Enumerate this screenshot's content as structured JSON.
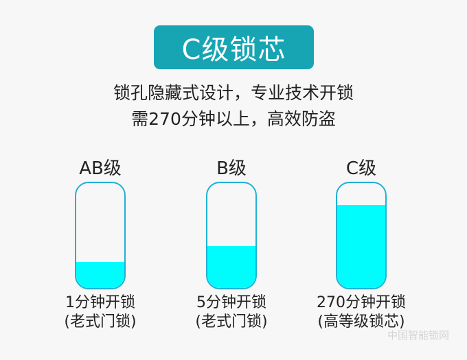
{
  "banner": {
    "title": "C级锁芯",
    "color": "#17a5b4"
  },
  "subtitle": {
    "line1": "锁孔隐藏式设计，专业技术开锁",
    "line2": "需270分钟以上，高效防盗"
  },
  "fill_color": "#00fdfd",
  "levels": [
    {
      "grade": "AB级",
      "fill_fraction": 0.25,
      "caption1": "1分钟开锁",
      "caption2": "(老式门锁)"
    },
    {
      "grade": "B级",
      "fill_fraction": 0.4,
      "caption1": "5分钟开锁",
      "caption2": "(老式门锁)"
    },
    {
      "grade": "C级",
      "fill_fraction": 0.79,
      "caption1": "270分钟开锁",
      "caption2": "(高等级锁芯)"
    }
  ],
  "watermark": "中国智能锁网"
}
